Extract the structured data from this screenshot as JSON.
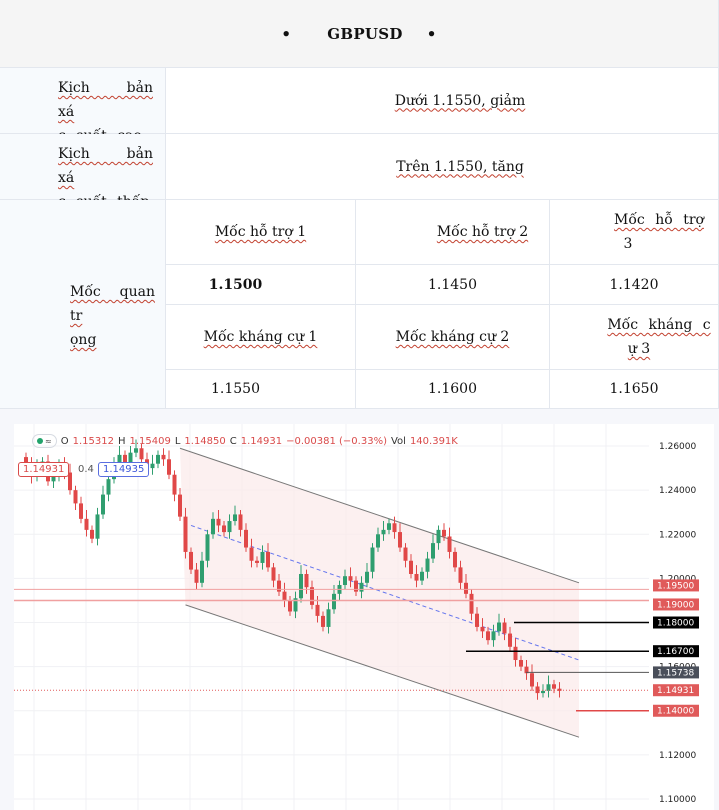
{
  "table": {
    "title": "GBPUSD",
    "bullet": "•",
    "rows": [
      {
        "label_a": "Kịch bản xá",
        "label_b": "c suất cao",
        "value": "Dưới 1.1550, giảm"
      },
      {
        "label_a": "Kịch bản xá",
        "label_b": "c suất thấp",
        "value": "Trên 1.1550, tăng"
      }
    ],
    "key_label_a": "Mốc quan tr",
    "key_label_b": "ọng",
    "support_headers": [
      "Mốc hỗ trợ 1",
      "Mốc hỗ trợ 2",
      "Mốc hỗ trợ",
      "3"
    ],
    "support_values": [
      "1.1500",
      "1.1450",
      "1.1420"
    ],
    "resistance_headers": [
      "Mốc kháng cự 1",
      "Mốc kháng cự 2",
      "Mốc kháng c",
      "ự 3"
    ],
    "resistance_values": [
      "1.1550",
      "1.1600",
      "1.1650"
    ]
  },
  "chart_header": {
    "eye_icon": "eye-icon",
    "wave_icon": "≈",
    "o_label": "O",
    "o_value": "1.15312",
    "h_label": "H",
    "h_value": "1.15409",
    "l_label": "L",
    "l_value": "1.14850",
    "c_label": "C",
    "c_value": "1.14931",
    "change": "−0.00381 (−0.33%)",
    "vol_label": "Vol",
    "vol_value": "140.391K",
    "bid": "1.14931",
    "spread": "0.4",
    "ask": "1.14935"
  },
  "chart_data": {
    "type": "candlestick",
    "symbol": "GBPUSD",
    "ylim": [
      1.095,
      1.27
    ],
    "y_ticks": [
      "1.26000",
      "1.24000",
      "1.22000",
      "1.20000",
      "1.18000",
      "1.16000",
      "1.14000",
      "1.12000",
      "1.10000"
    ],
    "level_tags": [
      {
        "value": "1.19500",
        "color": "#e05a5a"
      },
      {
        "value": "1.19000",
        "color": "#e05a5a"
      },
      {
        "value": "1.18000",
        "color": "#000000"
      },
      {
        "value": "1.16700",
        "color": "#000000"
      },
      {
        "value": "1.15738",
        "color": "#4a4f5a"
      },
      {
        "value": "1.14931",
        "color": "#e05a5a"
      },
      {
        "value": "1.14000",
        "color": "#e05a5a"
      }
    ],
    "closes": [
      1.252,
      1.246,
      1.25,
      1.253,
      1.244,
      1.246,
      1.252,
      1.248,
      1.24,
      1.234,
      1.227,
      1.222,
      1.218,
      1.229,
      1.238,
      1.245,
      1.252,
      1.256,
      1.251,
      1.257,
      1.259,
      1.254,
      1.25,
      1.252,
      1.256,
      1.254,
      1.247,
      1.238,
      1.228,
      1.212,
      1.204,
      1.198,
      1.208,
      1.22,
      1.227,
      1.224,
      1.221,
      1.226,
      1.229,
      1.222,
      1.214,
      1.208,
      1.207,
      1.212,
      1.205,
      1.199,
      1.194,
      1.19,
      1.185,
      1.191,
      1.202,
      1.196,
      1.188,
      1.183,
      1.178,
      1.186,
      1.193,
      1.197,
      1.201,
      1.199,
      1.194,
      1.198,
      1.203,
      1.214,
      1.22,
      1.222,
      1.225,
      1.221,
      1.214,
      1.208,
      1.202,
      1.199,
      1.203,
      1.209,
      1.216,
      1.222,
      1.219,
      1.212,
      1.205,
      1.198,
      1.193,
      1.184,
      1.178,
      1.176,
      1.172,
      1.176,
      1.18,
      1.175,
      1.169,
      1.163,
      1.16,
      1.157,
      1.151,
      1.148,
      1.149,
      1.152,
      1.15,
      1.149
    ]
  }
}
